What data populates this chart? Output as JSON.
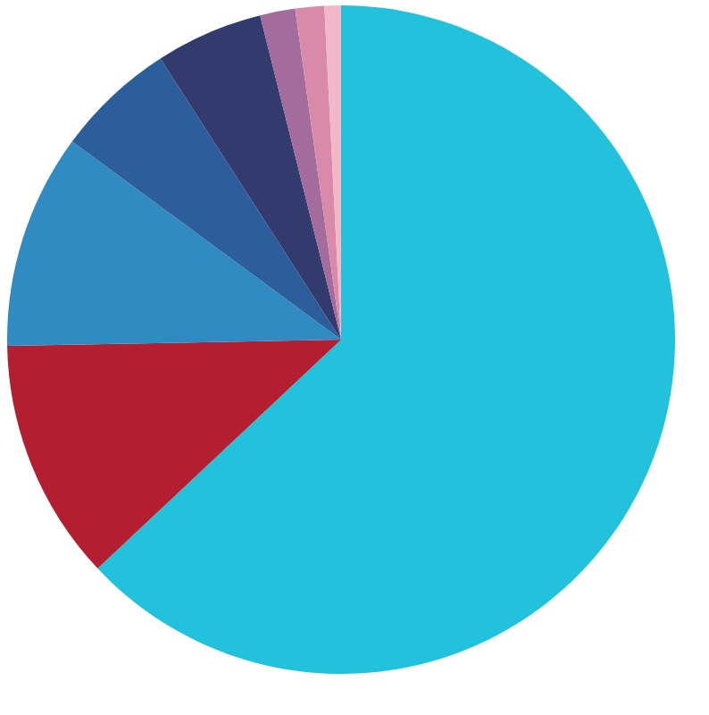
{
  "chart_data": {
    "type": "pie",
    "categories": [
      null,
      null,
      null,
      null,
      null,
      null,
      null,
      null
    ],
    "values": [
      63.0,
      11.7,
      10.4,
      5.8,
      5.2,
      1.7,
      1.4,
      0.8
    ],
    "colors": [
      "#22c1dc",
      "#b31f30",
      "#2f8bc2",
      "#2d5e9c",
      "#333a6e",
      "#a46c9c",
      "#d98aa8",
      "#f3b8c8"
    ]
  }
}
